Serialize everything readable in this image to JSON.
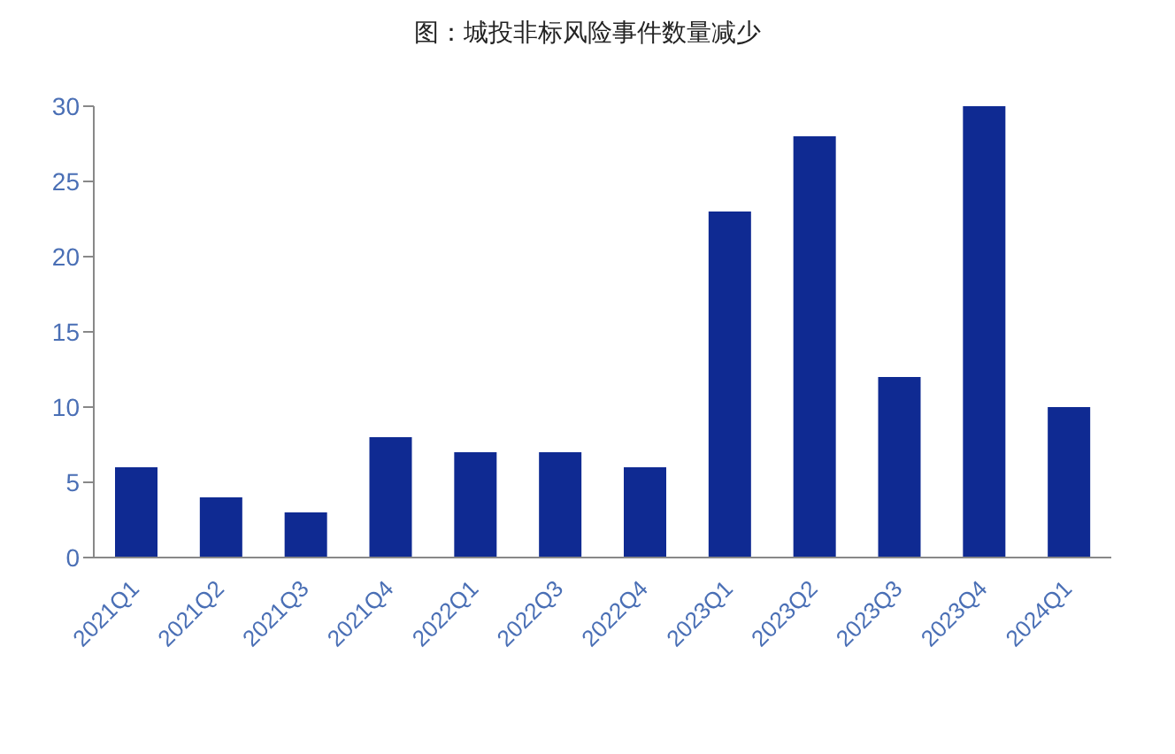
{
  "chart_data": {
    "type": "bar",
    "title": "图：城投非标风险事件数量减少",
    "categories": [
      "2021Q1",
      "2021Q2",
      "2021Q3",
      "2021Q4",
      "2022Q1",
      "2022Q3",
      "2022Q4",
      "2023Q1",
      "2023Q2",
      "2023Q3",
      "2023Q4",
      "2024Q1"
    ],
    "values": [
      6,
      4,
      3,
      8,
      7,
      7,
      6,
      23,
      28,
      12,
      30,
      10
    ],
    "color": "#0f2a92",
    "ylim": [
      0,
      30
    ],
    "yticks": [
      0,
      5,
      10,
      15,
      20,
      25,
      30
    ]
  }
}
